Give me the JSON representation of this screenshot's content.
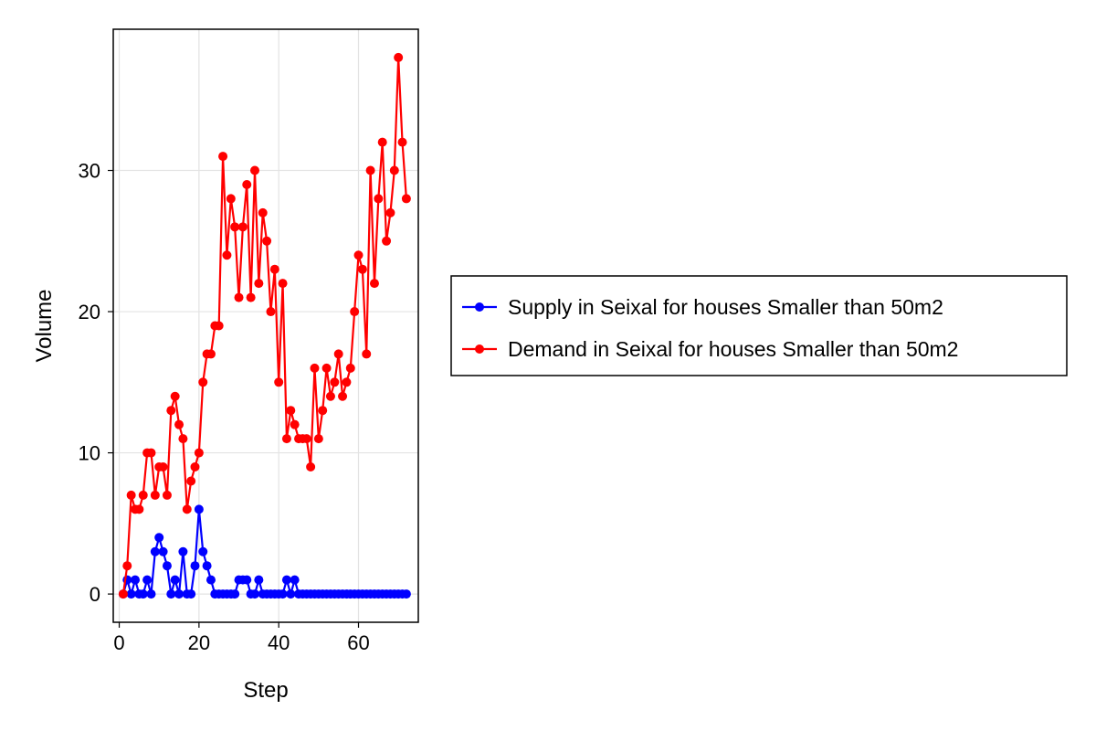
{
  "chart_data": {
    "type": "line",
    "title": "",
    "xlabel": "Step",
    "ylabel": "Volume",
    "xlim": [
      -1.5,
      75
    ],
    "ylim": [
      -2,
      40
    ],
    "xticks": [
      0,
      20,
      40,
      60
    ],
    "yticks": [
      0,
      10,
      20,
      30
    ],
    "grid": true,
    "legend_position": "right",
    "series": [
      {
        "name": "Supply in Seixal for houses Smaller than 50m2",
        "color": "#0000ff",
        "x": [
          1,
          2,
          3,
          4,
          5,
          6,
          7,
          8,
          9,
          10,
          11,
          12,
          13,
          14,
          15,
          16,
          17,
          18,
          19,
          20,
          21,
          22,
          23,
          24,
          25,
          26,
          27,
          28,
          29,
          30,
          31,
          32,
          33,
          34,
          35,
          36,
          37,
          38,
          39,
          40,
          41,
          42,
          43,
          44,
          45,
          46,
          47,
          48,
          49,
          50,
          51,
          52,
          53,
          54,
          55,
          56,
          57,
          58,
          59,
          60,
          61,
          62,
          63,
          64,
          65,
          66,
          67,
          68,
          69,
          70,
          71,
          72
        ],
        "values": [
          0,
          1,
          0,
          1,
          0,
          0,
          1,
          0,
          3,
          4,
          3,
          2,
          0,
          1,
          0,
          3,
          0,
          0,
          2,
          6,
          3,
          2,
          1,
          0,
          0,
          0,
          0,
          0,
          0,
          1,
          1,
          1,
          0,
          0,
          1,
          0,
          0,
          0,
          0,
          0,
          0,
          1,
          0,
          1,
          0,
          0,
          0,
          0,
          0,
          0,
          0,
          0,
          0,
          0,
          0,
          0,
          0,
          0,
          0,
          0,
          0,
          0,
          0,
          0,
          0,
          0,
          0,
          0,
          0,
          0,
          0,
          0
        ]
      },
      {
        "name": "Demand in Seixal for houses Smaller than 50m2",
        "color": "#ff0000",
        "x": [
          1,
          2,
          3,
          4,
          5,
          6,
          7,
          8,
          9,
          10,
          11,
          12,
          13,
          14,
          15,
          16,
          17,
          18,
          19,
          20,
          21,
          22,
          23,
          24,
          25,
          26,
          27,
          28,
          29,
          30,
          31,
          32,
          33,
          34,
          35,
          36,
          37,
          38,
          39,
          40,
          41,
          42,
          43,
          44,
          45,
          46,
          47,
          48,
          49,
          50,
          51,
          52,
          53,
          54,
          55,
          56,
          57,
          58,
          59,
          60,
          61,
          62,
          63,
          64,
          65,
          66,
          67,
          68,
          69,
          70,
          71,
          72
        ],
        "values": [
          0,
          2,
          7,
          6,
          6,
          7,
          10,
          10,
          7,
          9,
          9,
          7,
          13,
          14,
          12,
          11,
          6,
          8,
          9,
          10,
          15,
          17,
          17,
          19,
          19,
          31,
          24,
          28,
          26,
          21,
          26,
          29,
          21,
          30,
          22,
          27,
          25,
          20,
          23,
          15,
          22,
          11,
          13,
          12,
          11,
          11,
          11,
          9,
          16,
          11,
          13,
          16,
          14,
          15,
          17,
          14,
          15,
          16,
          20,
          24,
          23,
          17,
          30,
          22,
          28,
          32,
          25,
          27,
          30,
          38,
          32,
          28
        ]
      }
    ]
  }
}
